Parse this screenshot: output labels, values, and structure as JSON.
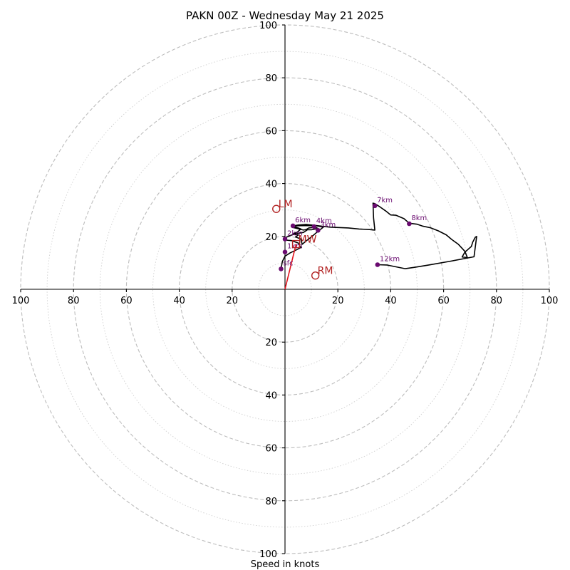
{
  "chart_data": {
    "type": "hodograph",
    "title": "PAKN 00Z - Wednesday May 21 2025",
    "xlabel": "Speed in knots",
    "ylabel": "",
    "xlim": [
      -100,
      100
    ],
    "ylim": [
      -100,
      100
    ],
    "units": "kt",
    "rings_major": [
      20,
      40,
      60,
      80,
      100
    ],
    "rings_minor": [
      10,
      30,
      50,
      70,
      90
    ],
    "tick_labels": [
      "100",
      "80",
      "60",
      "40",
      "20",
      "20",
      "40",
      "60",
      "80",
      "100"
    ],
    "colors": {
      "trace": "#000000",
      "markers": "#6a0b70",
      "storm_motion": "#b22222",
      "vector": "#e0141e"
    },
    "hodograph_trace": [
      [
        -1.5,
        7.7
      ],
      [
        -1,
        10.5
      ],
      [
        0,
        12.5
      ],
      [
        2,
        13.8
      ],
      [
        3.5,
        14.5
      ],
      [
        6,
        15.8
      ],
      [
        5,
        17.5
      ],
      [
        2.5,
        18.4
      ],
      [
        0.3,
        18.6
      ],
      [
        0,
        19.5
      ],
      [
        2.5,
        20.5
      ],
      [
        4,
        21
      ],
      [
        7,
        21.5
      ],
      [
        8.5,
        22.5
      ],
      [
        10,
        22.5
      ],
      [
        12.5,
        23
      ],
      [
        11.5,
        23.5
      ],
      [
        9,
        23.2
      ],
      [
        8,
        22.6
      ],
      [
        7,
        22.4
      ],
      [
        3,
        23.4
      ],
      [
        3.5,
        23.8
      ],
      [
        6,
        22.8
      ],
      [
        4.5,
        21.5
      ],
      [
        3,
        21
      ],
      [
        5,
        20.5
      ],
      [
        4,
        19.8
      ],
      [
        6,
        19
      ],
      [
        6.5,
        17
      ],
      [
        8,
        18.3
      ],
      [
        10,
        19.8
      ],
      [
        12,
        21.5
      ],
      [
        14.5,
        23.5
      ],
      [
        12,
        24
      ],
      [
        9,
        24.1
      ],
      [
        3,
        24
      ],
      [
        5,
        24.3
      ],
      [
        8,
        24.5
      ],
      [
        11,
        24.2
      ],
      [
        17,
        23.5
      ],
      [
        24,
        23.2
      ],
      [
        28,
        22.8
      ],
      [
        32,
        22.6
      ],
      [
        34,
        22.4
      ],
      [
        33.5,
        27
      ],
      [
        33.3,
        32.6
      ],
      [
        34,
        32.4
      ],
      [
        36,
        31.1
      ],
      [
        38,
        29.7
      ],
      [
        40,
        28.1
      ],
      [
        42,
        28
      ],
      [
        45,
        26.7
      ],
      [
        47,
        25
      ],
      [
        50,
        24.6
      ],
      [
        52,
        23.9
      ],
      [
        55,
        23.3
      ],
      [
        58,
        22.1
      ],
      [
        61,
        20.6
      ],
      [
        63,
        18.9
      ],
      [
        65.5,
        17.1
      ],
      [
        68,
        14.4
      ],
      [
        69,
        12
      ],
      [
        67,
        12.2
      ],
      [
        68,
        14
      ],
      [
        69.5,
        15.3
      ],
      [
        70.5,
        16.2
      ],
      [
        71,
        17.8
      ],
      [
        72,
        19.7
      ],
      [
        72.5,
        20
      ],
      [
        71.5,
        12.3
      ],
      [
        62,
        10.5
      ],
      [
        54,
        9.1
      ],
      [
        49,
        8.3
      ],
      [
        45.5,
        7.8
      ],
      [
        38.5,
        9.2
      ],
      [
        35,
        9.3
      ]
    ],
    "height_markers": [
      {
        "label": "sfc",
        "u": -1.5,
        "v": 7.7
      },
      {
        "label": "1km",
        "u": 0,
        "v": 14.1
      },
      {
        "label": "2km",
        "u": 0,
        "v": 19
      },
      {
        "label": "3km",
        "u": 12.5,
        "v": 22.3
      },
      {
        "label": "4km",
        "u": 11,
        "v": 23.7
      },
      {
        "label": "6km",
        "u": 3,
        "v": 24
      },
      {
        "label": "7km",
        "u": 34,
        "v": 31.6
      },
      {
        "label": "8km",
        "u": 47,
        "v": 24.8
      },
      {
        "label": "12km",
        "u": 35,
        "v": 9.3
      }
    ],
    "storm_motion": [
      {
        "label": "LM",
        "u": -3.3,
        "v": 30.4
      },
      {
        "label": "MW",
        "u": 4.2,
        "v": 17.1
      },
      {
        "label": "RM",
        "u": 11.5,
        "v": 5.2
      }
    ],
    "mean_wind_vector": {
      "u": 4.2,
      "v": 17.1
    }
  }
}
